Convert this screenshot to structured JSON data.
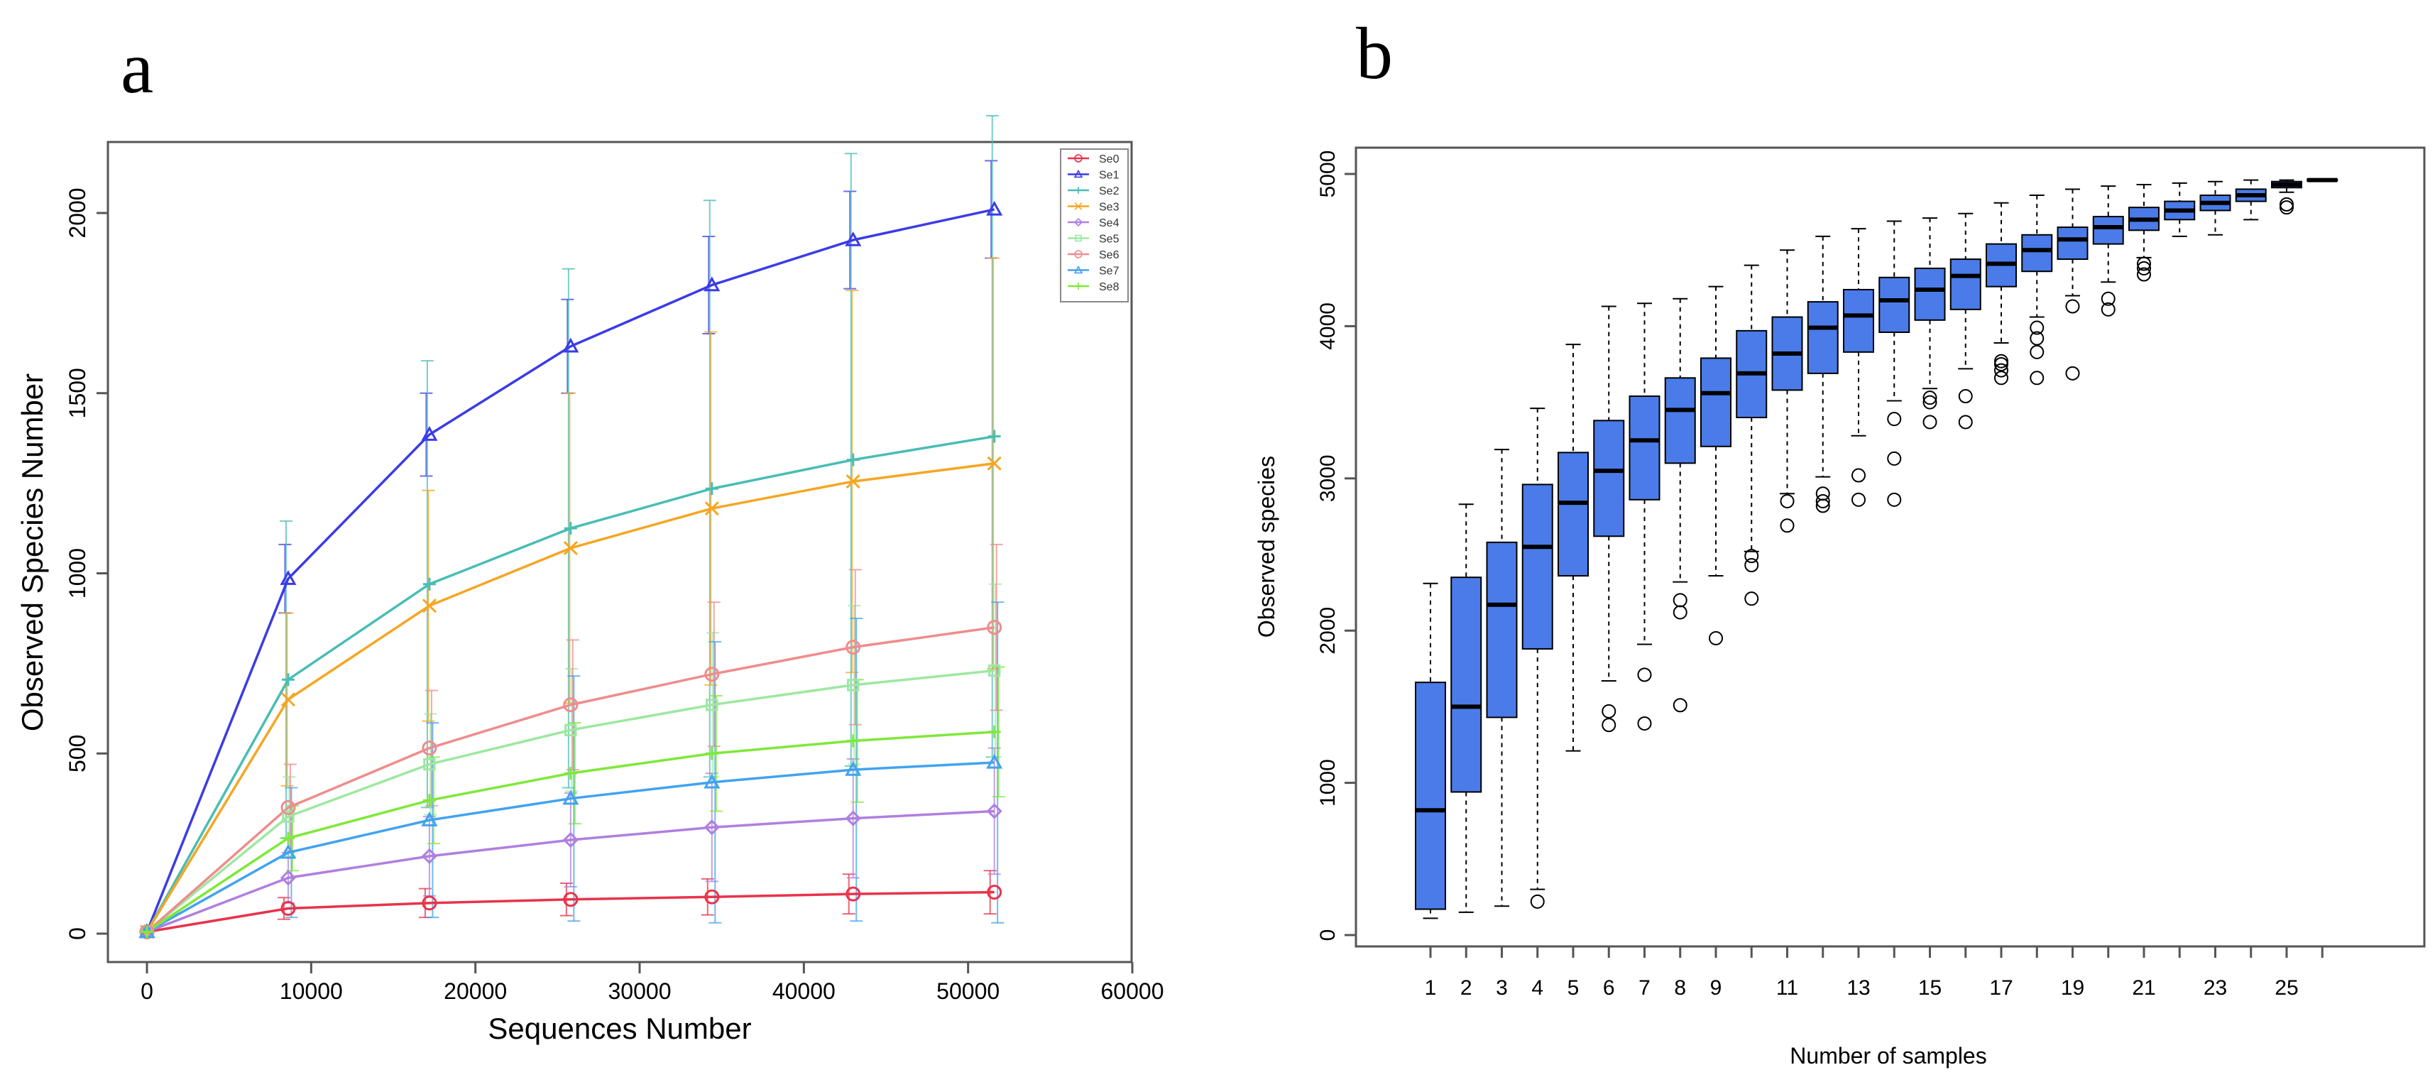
{
  "panels": {
    "a": {
      "letter": "a"
    },
    "b": {
      "letter": "b"
    }
  },
  "chart_data": [
    {
      "type": "line",
      "xlabel": "Sequences Number",
      "ylabel": "Observed Species Number",
      "xlim": [
        0,
        60000
      ],
      "ylim": [
        0,
        2200
      ],
      "xticks": [
        0,
        10000,
        20000,
        30000,
        40000,
        50000,
        60000
      ],
      "yticks": [
        0,
        500,
        1000,
        1500,
        2000
      ],
      "legend_position": "top-right",
      "grid": false,
      "x": [
        0,
        8600,
        17200,
        25800,
        34400,
        43000,
        51600
      ],
      "series": [
        {
          "name": "Se0",
          "color": "#e8334a",
          "marker": "circle",
          "values": [
            5,
            70,
            85,
            95,
            102,
            110,
            115
          ],
          "errors": [
            0,
            30,
            40,
            45,
            50,
            55,
            60
          ]
        },
        {
          "name": "Se1",
          "color": "#3b3be8",
          "marker": "triangle",
          "values": [
            5,
            985,
            1385,
            1630,
            1800,
            1925,
            2010
          ],
          "errors": [
            0,
            95,
            115,
            130,
            135,
            135,
            135
          ]
        },
        {
          "name": "Se2",
          "color": "#49bdb5",
          "marker": "plus",
          "values": [
            5,
            705,
            970,
            1125,
            1235,
            1315,
            1380
          ],
          "errors": [
            0,
            440,
            620,
            720,
            800,
            850,
            890
          ]
        },
        {
          "name": "Se3",
          "color": "#f5a623",
          "marker": "x",
          "values": [
            5,
            650,
            910,
            1070,
            1180,
            1255,
            1305
          ],
          "errors": [
            0,
            240,
            320,
            430,
            490,
            530,
            570
          ]
        },
        {
          "name": "Se4",
          "color": "#b07fe0",
          "marker": "diamond",
          "values": [
            5,
            155,
            215,
            260,
            295,
            320,
            340
          ],
          "errors": [
            0,
            70,
            110,
            130,
            150,
            165,
            175
          ]
        },
        {
          "name": "Se5",
          "color": "#9de8a0",
          "marker": "square",
          "values": [
            5,
            325,
            470,
            565,
            635,
            690,
            730
          ],
          "errors": [
            0,
            110,
            140,
            170,
            200,
            220,
            240
          ]
        },
        {
          "name": "Se6",
          "color": "#f08c8c",
          "marker": "circle",
          "values": [
            5,
            350,
            515,
            635,
            720,
            795,
            850
          ],
          "errors": [
            0,
            120,
            160,
            180,
            200,
            215,
            230
          ]
        },
        {
          "name": "Se7",
          "color": "#41a3f0",
          "marker": "triangle",
          "values": [
            5,
            225,
            315,
            375,
            420,
            455,
            475
          ],
          "errors": [
            0,
            180,
            270,
            340,
            390,
            420,
            445
          ]
        },
        {
          "name": "Se8",
          "color": "#7fe83a",
          "marker": "plus",
          "values": [
            5,
            265,
            370,
            445,
            500,
            535,
            560
          ],
          "errors": [
            0,
            90,
            120,
            140,
            160,
            170,
            180
          ]
        }
      ]
    },
    {
      "type": "box",
      "xlabel": "Number of samples",
      "ylabel": "Observed species",
      "ylim": [
        0,
        5100
      ],
      "yticks": [
        0,
        1000,
        2000,
        3000,
        4000,
        5000
      ],
      "xtick_labels": [
        "1",
        "2",
        "3",
        "4",
        "5",
        "6",
        "7",
        "8",
        "9",
        "11",
        "13",
        "15",
        "17",
        "19",
        "21",
        "23",
        "25"
      ],
      "xtick_positions": [
        1,
        2,
        3,
        4,
        5,
        6,
        7,
        8,
        9,
        11,
        13,
        15,
        17,
        19,
        21,
        23,
        25
      ],
      "box_color": "#4a7be8",
      "grid": false,
      "boxes": [
        {
          "n": 1,
          "whisker_low": 110,
          "q1": 170,
          "median": 820,
          "q3": 1660,
          "whisker_high": 2310,
          "outliers": []
        },
        {
          "n": 2,
          "whisker_low": 150,
          "q1": 940,
          "median": 1500,
          "q3": 2350,
          "whisker_high": 2830,
          "outliers": []
        },
        {
          "n": 3,
          "whisker_low": 190,
          "q1": 1430,
          "median": 2170,
          "q3": 2580,
          "whisker_high": 3190,
          "outliers": []
        },
        {
          "n": 4,
          "whisker_low": 300,
          "q1": 1880,
          "median": 2550,
          "q3": 2960,
          "whisker_high": 3460,
          "outliers": [
            220
          ]
        },
        {
          "n": 5,
          "whisker_low": 1210,
          "q1": 2360,
          "median": 2840,
          "q3": 3170,
          "whisker_high": 3880,
          "outliers": []
        },
        {
          "n": 6,
          "whisker_low": 1670,
          "q1": 2620,
          "median": 3050,
          "q3": 3380,
          "whisker_high": 4130,
          "outliers": [
            1380,
            1470
          ]
        },
        {
          "n": 7,
          "whisker_low": 1910,
          "q1": 2860,
          "median": 3250,
          "q3": 3540,
          "whisker_high": 4150,
          "outliers": [
            1390,
            1710
          ]
        },
        {
          "n": 8,
          "whisker_low": 2320,
          "q1": 3100,
          "median": 3450,
          "q3": 3660,
          "whisker_high": 4180,
          "outliers": [
            1510,
            2120,
            2200
          ]
        },
        {
          "n": 9,
          "whisker_low": 2360,
          "q1": 3210,
          "median": 3560,
          "q3": 3790,
          "whisker_high": 4260,
          "outliers": [
            1950
          ]
        },
        {
          "n": 10,
          "whisker_low": 2520,
          "q1": 3400,
          "median": 3690,
          "q3": 3970,
          "whisker_high": 4400,
          "outliers": [
            2210,
            2430,
            2490
          ]
        },
        {
          "n": 11,
          "whisker_low": 2900,
          "q1": 3580,
          "median": 3820,
          "q3": 4060,
          "whisker_high": 4500,
          "outliers": [
            2690,
            2850
          ]
        },
        {
          "n": 12,
          "whisker_low": 3010,
          "q1": 3690,
          "median": 3990,
          "q3": 4160,
          "whisker_high": 4590,
          "outliers": [
            2820,
            2850,
            2900
          ]
        },
        {
          "n": 13,
          "whisker_low": 3280,
          "q1": 3830,
          "median": 4070,
          "q3": 4240,
          "whisker_high": 4640,
          "outliers": [
            2860,
            3020
          ]
        },
        {
          "n": 14,
          "whisker_low": 3510,
          "q1": 3960,
          "median": 4170,
          "q3": 4320,
          "whisker_high": 4690,
          "outliers": [
            2860,
            3130,
            3390
          ]
        },
        {
          "n": 15,
          "whisker_low": 3590,
          "q1": 4040,
          "median": 4240,
          "q3": 4380,
          "whisker_high": 4710,
          "outliers": [
            3370,
            3500,
            3530
          ]
        },
        {
          "n": 16,
          "whisker_low": 3720,
          "q1": 4110,
          "median": 4330,
          "q3": 4440,
          "whisker_high": 4740,
          "outliers": [
            3370,
            3540
          ]
        },
        {
          "n": 17,
          "whisker_low": 3890,
          "q1": 4260,
          "median": 4410,
          "q3": 4540,
          "whisker_high": 4810,
          "outliers": [
            3660,
            3710,
            3750,
            3770
          ]
        },
        {
          "n": 18,
          "whisker_low": 4060,
          "q1": 4360,
          "median": 4500,
          "q3": 4600,
          "whisker_high": 4860,
          "outliers": [
            3660,
            3830,
            3920,
            3990
          ]
        },
        {
          "n": 19,
          "whisker_low": 4200,
          "q1": 4440,
          "median": 4570,
          "q3": 4650,
          "whisker_high": 4900,
          "outliers": [
            3690,
            4130
          ]
        },
        {
          "n": 20,
          "whisker_low": 4290,
          "q1": 4540,
          "median": 4650,
          "q3": 4720,
          "whisker_high": 4920,
          "outliers": [
            4110,
            4180
          ]
        },
        {
          "n": 21,
          "whisker_low": 4450,
          "q1": 4630,
          "median": 4700,
          "q3": 4780,
          "whisker_high": 4930,
          "outliers": [
            4340,
            4380,
            4410
          ]
        },
        {
          "n": 22,
          "whisker_low": 4590,
          "q1": 4700,
          "median": 4760,
          "q3": 4820,
          "whisker_high": 4940,
          "outliers": []
        },
        {
          "n": 23,
          "whisker_low": 4600,
          "q1": 4760,
          "median": 4810,
          "q3": 4860,
          "whisker_high": 4950,
          "outliers": []
        },
        {
          "n": 24,
          "whisker_low": 4700,
          "q1": 4820,
          "median": 4860,
          "q3": 4900,
          "whisker_high": 4960,
          "outliers": []
        },
        {
          "n": 25,
          "whisker_low": 4880,
          "q1": 4910,
          "median": 4930,
          "q3": 4950,
          "whisker_high": 4960,
          "outliers": [
            4780,
            4800
          ]
        },
        {
          "n": 26,
          "whisker_low": 4955,
          "q1": 4955,
          "median": 4960,
          "q3": 4965,
          "whisker_high": 4965,
          "outliers": []
        }
      ]
    }
  ]
}
